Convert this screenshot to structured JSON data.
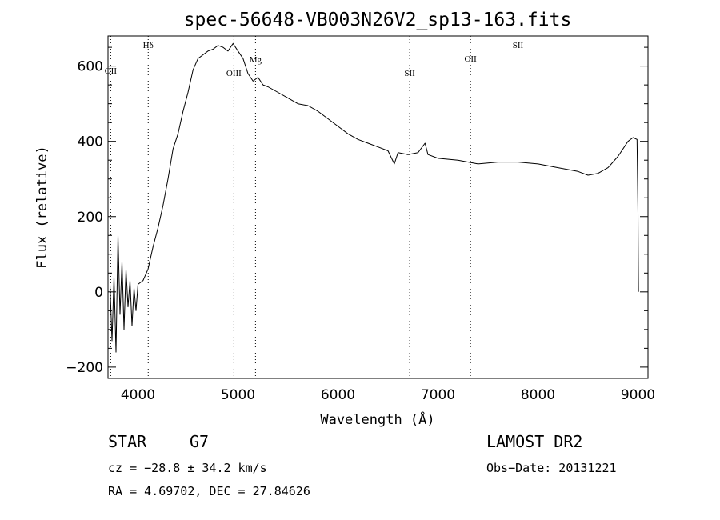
{
  "chart_data": {
    "type": "line",
    "title": "spec-56648-VB003N26V2_sp13-163.fits",
    "xlabel": "Wavelength (Å)",
    "ylabel": "Flux (relative)",
    "xlim": [
      3700,
      9100
    ],
    "ylim": [
      -230,
      680
    ],
    "x_ticks": [
      4000,
      5000,
      6000,
      7000,
      8000,
      9000
    ],
    "x_tick_labels": [
      "4000",
      "5000",
      "6000",
      "7000",
      "8000",
      "9000"
    ],
    "y_ticks": [
      -200,
      0,
      200,
      400,
      600
    ],
    "y_tick_labels": [
      "−200",
      "0",
      "200",
      "400",
      "600"
    ],
    "x_minor_step": 200,
    "y_minor_step": 50,
    "grid": false,
    "legend": "none",
    "series": [
      {
        "x": [
          3720,
          3740,
          3760,
          3780,
          3800,
          3820,
          3840,
          3860,
          3880,
          3900,
          3920,
          3940,
          3960,
          3980,
          4000,
          4050,
          4100,
          4150,
          4200,
          4250,
          4300,
          4350,
          4400,
          4450,
          4500,
          4550,
          4600,
          4650,
          4700,
          4750,
          4800,
          4850,
          4900,
          4950,
          5000,
          5050,
          5100,
          5150,
          5200,
          5250,
          5300,
          5400,
          5500,
          5600,
          5700,
          5800,
          5900,
          6000,
          6100,
          6200,
          6300,
          6400,
          6500,
          6563,
          6600,
          6700,
          6800,
          6870,
          6900,
          7000,
          7200,
          7400,
          7600,
          7800,
          8000,
          8200,
          8400,
          8500,
          8600,
          8700,
          8800,
          8900,
          8950,
          8990,
          9000,
          9005
        ],
        "y": [
          20,
          -130,
          40,
          -160,
          150,
          -60,
          80,
          -100,
          60,
          -40,
          30,
          -90,
          10,
          -50,
          20,
          30,
          60,
          120,
          170,
          230,
          300,
          380,
          420,
          480,
          530,
          590,
          620,
          630,
          640,
          645,
          655,
          650,
          640,
          660,
          640,
          620,
          580,
          560,
          570,
          550,
          545,
          530,
          515,
          500,
          495,
          480,
          460,
          440,
          420,
          405,
          395,
          385,
          375,
          340,
          370,
          365,
          370,
          395,
          365,
          355,
          350,
          340,
          345,
          345,
          340,
          330,
          320,
          310,
          315,
          330,
          360,
          400,
          410,
          405,
          210,
          0
        ],
        "color": "#000000"
      }
    ],
    "line_markers": [
      {
        "label": "OII",
        "x": 3727
      },
      {
        "label": "Hδ",
        "x": 4102
      },
      {
        "label": "OIII",
        "x": 4959
      },
      {
        "label": "Mg",
        "x": 5175
      },
      {
        "label": "SII",
        "x": 6717
      },
      {
        "label": "OII",
        "x": 7325
      },
      {
        "label": "SII",
        "x": 7800
      }
    ]
  },
  "info": {
    "object_type": "STAR",
    "subclass": "G7",
    "survey": "LAMOST DR2",
    "cz": "cz = −28.8 ± 34.2 km/s",
    "obs_date": "Obs−Date: 20131221",
    "coords": "RA =   4.69702, DEC =  27.84626"
  }
}
